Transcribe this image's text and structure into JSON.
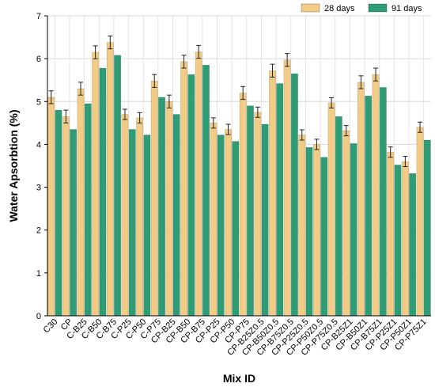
{
  "chart_data": {
    "type": "bar",
    "xlabel": "Mix ID",
    "ylabel": "Water Apsorbtion (%)",
    "ylim": [
      0,
      7
    ],
    "yticks": [
      0,
      1,
      2,
      3,
      4,
      5,
      6,
      7
    ],
    "grid": true,
    "legend_position": "top-right",
    "categories": [
      "C30",
      "CP",
      "C-B25",
      "C-B50",
      "C-B75",
      "C-P25",
      "C-P50",
      "C-P75",
      "CP-B25",
      "CP-B50",
      "CP-B75",
      "CP-P25",
      "CP-P50",
      "CP-P75",
      "CP-B25Z0.5",
      "CP-B50Z0.5",
      "CP-B75Z0.5",
      "CP-P25Z0.5",
      "CP-P50Z0.5",
      "CP-P75Z0.5",
      "CP-B25Z1",
      "CP-B50Z1",
      "CP-B75Z1",
      "CP-P25Z1",
      "CP-P50Z1",
      "CP-P75Z1"
    ],
    "series": [
      {
        "name": "28 days",
        "color": "#F2CB85",
        "values": [
          5.1,
          4.65,
          5.3,
          6.15,
          6.38,
          4.7,
          4.62,
          5.48,
          5.0,
          5.93,
          6.16,
          4.5,
          4.35,
          5.2,
          4.75,
          5.72,
          5.97,
          4.22,
          4.0,
          4.97,
          4.32,
          5.45,
          5.63,
          3.82,
          3.6,
          4.4
        ],
        "errors": [
          0.15,
          0.15,
          0.15,
          0.15,
          0.15,
          0.12,
          0.12,
          0.15,
          0.15,
          0.15,
          0.15,
          0.12,
          0.12,
          0.15,
          0.12,
          0.15,
          0.15,
          0.12,
          0.12,
          0.12,
          0.12,
          0.15,
          0.15,
          0.12,
          0.12,
          0.12
        ]
      },
      {
        "name": "91 days",
        "color": "#2E9C75",
        "values": [
          4.8,
          4.35,
          4.95,
          5.78,
          6.08,
          4.35,
          4.22,
          5.1,
          4.7,
          5.63,
          5.85,
          4.22,
          4.07,
          4.9,
          4.47,
          5.42,
          5.65,
          3.93,
          3.7,
          4.65,
          4.02,
          5.13,
          5.33,
          3.52,
          3.32,
          4.1
        ]
      }
    ]
  }
}
